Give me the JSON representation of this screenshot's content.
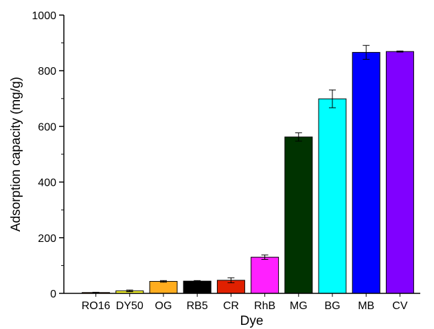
{
  "chart_data": {
    "type": "bar",
    "title": "",
    "xlabel": "Dye",
    "ylabel": "Adsorption capacity (mg/g)",
    "ylim": [
      0,
      1000
    ],
    "yticks": [
      0,
      200,
      400,
      600,
      800,
      1000
    ],
    "grid": false,
    "legend": "none",
    "categories": [
      "RO16",
      "DY50",
      "OG",
      "RB5",
      "CR",
      "RhB",
      "MG",
      "BG",
      "MB",
      "CV"
    ],
    "values": [
      3,
      9,
      43,
      44,
      47,
      130,
      562,
      699,
      866,
      869
    ],
    "errors": [
      1,
      3,
      3,
      2,
      9,
      8,
      15,
      32,
      25,
      2
    ],
    "colors": [
      "#ff6e00",
      "#ffff33",
      "#ffad1f",
      "#000000",
      "#e02000",
      "#ff20ff",
      "#003300",
      "#00ffff",
      "#0000ff",
      "#8000ff"
    ]
  }
}
